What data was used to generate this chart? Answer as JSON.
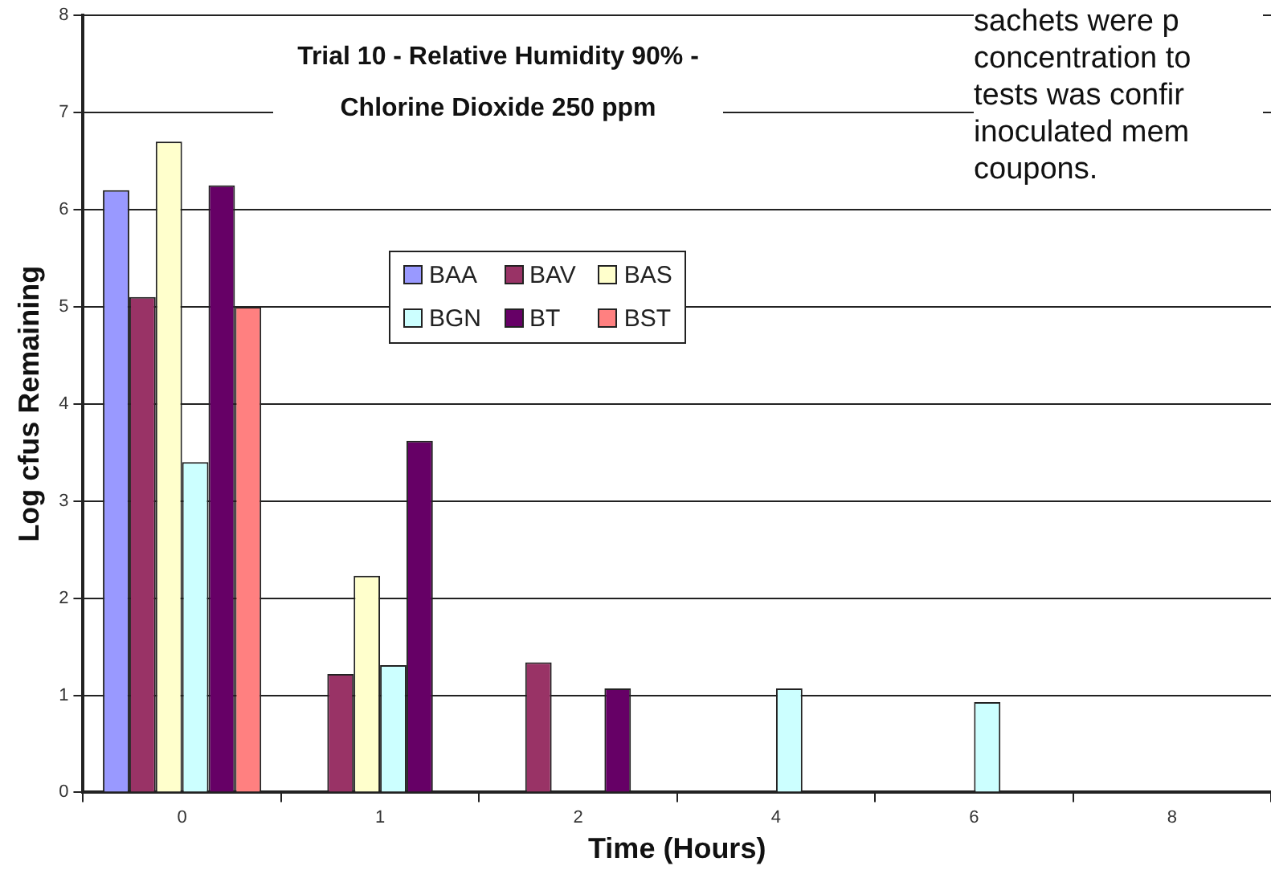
{
  "chart_data": {
    "type": "bar",
    "title": "Trial 10 - Relative Humidity 90% - Chlorine Dioxide 250 ppm",
    "xlabel": "Time (Hours)",
    "ylabel": "Log cfus Remaining",
    "categories": [
      "0",
      "1",
      "2",
      "4",
      "6",
      "8"
    ],
    "series": [
      {
        "name": "BAA",
        "color": "#9999ff",
        "values": [
          6.2,
          null,
          null,
          null,
          null,
          null
        ]
      },
      {
        "name": "BAV",
        "color": "#993366",
        "values": [
          5.1,
          1.22,
          1.34,
          null,
          null,
          null
        ]
      },
      {
        "name": "BAS",
        "color": "#ffffcc",
        "values": [
          6.7,
          2.23,
          null,
          null,
          null,
          null
        ]
      },
      {
        "name": "BGN",
        "color": "#ccffff",
        "values": [
          3.4,
          1.31,
          null,
          1.07,
          0.93,
          null
        ]
      },
      {
        "name": "BT",
        "color": "#660066",
        "values": [
          6.25,
          3.62,
          1.07,
          null,
          null,
          null
        ]
      },
      {
        "name": "BST",
        "color": "#ff8080",
        "values": [
          5.0,
          null,
          null,
          null,
          null,
          null
        ]
      }
    ],
    "ylim": [
      0,
      8
    ],
    "yticks": [
      0,
      1,
      2,
      3,
      4,
      5,
      6,
      7,
      8
    ],
    "grid": "y",
    "legend": "top",
    "annotations": [
      "sachets were p concentration to tests was confir inoculated mem coupons."
    ]
  }
}
